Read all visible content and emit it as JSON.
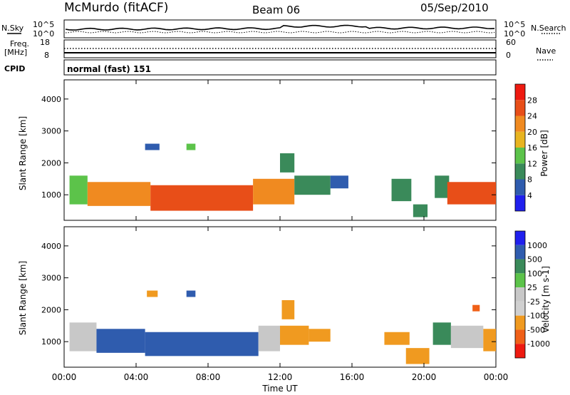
{
  "header": {
    "station": "McMurdo (fitACF)",
    "beam": "Beam 06",
    "date": "05/Sep/2010"
  },
  "noise_panel": {
    "left_label": "N.Sky",
    "right_label": "N.Search",
    "tick_top_left": "10^5",
    "tick_bottom_left": "10^0",
    "tick_top_right": "10^5",
    "tick_bottom_right": "10^0"
  },
  "freq_panel": {
    "left_label_1": "Freq.",
    "left_label_2": "[MHz]",
    "right_label": "Nave",
    "tick_left_top": "18",
    "tick_left_bottom": "8",
    "tick_right_top": "60",
    "tick_right_bottom": "0"
  },
  "cpid": {
    "label": "CPID",
    "value": "normal (fast) 151"
  },
  "colors": {
    "power": [
      "#2020ee",
      "#2f5cae",
      "#3a8a5a",
      "#5cc34a",
      "#e8b420",
      "#f08a20",
      "#e84e18",
      "#ee1a10"
    ],
    "velocity": [
      "#ee1a10",
      "#f06018",
      "#f09a20",
      "#d0d0d0",
      "#c8c8c8",
      "#5cc34a",
      "#3a8a5a",
      "#2f5cae",
      "#2020ee"
    ]
  },
  "chart_data": [
    {
      "type": "heatmap",
      "panel": "power",
      "xlabel": "",
      "ylabel": "Slant Range [km]",
      "x_ticks": [
        "00:00",
        "04:00",
        "08:00",
        "12:00",
        "16:00",
        "20:00",
        "00:00"
      ],
      "y_ticks": [
        "1000",
        "2000",
        "3000",
        "4000"
      ],
      "ylim": [
        200,
        4600
      ],
      "colorbar": {
        "label": "Power [dB]",
        "ticks": [
          "4",
          "8",
          "12",
          "16",
          "20",
          "24",
          "28"
        ],
        "range": [
          0,
          32
        ]
      },
      "regions": [
        {
          "x": [
            0.3,
            1.3
          ],
          "y": [
            700,
            1600
          ],
          "value": 12
        },
        {
          "x": [
            1.3,
            4.8
          ],
          "y": [
            650,
            1400
          ],
          "value": 20
        },
        {
          "x": [
            4.8,
            10.5
          ],
          "y": [
            500,
            1300
          ],
          "value": 27
        },
        {
          "x": [
            10.5,
            12.8
          ],
          "y": [
            700,
            1500
          ],
          "value": 20
        },
        {
          "x": [
            12.8,
            14.8
          ],
          "y": [
            1000,
            1600
          ],
          "value": 10
        },
        {
          "x": [
            14.8,
            15.8
          ],
          "y": [
            1200,
            1600
          ],
          "value": 7
        },
        {
          "x": [
            18.2,
            19.3
          ],
          "y": [
            800,
            1500
          ],
          "value": 9
        },
        {
          "x": [
            19.4,
            20.2
          ],
          "y": [
            300,
            700
          ],
          "value": 11
        },
        {
          "x": [
            20.6,
            21.4
          ],
          "y": [
            900,
            1600
          ],
          "value": 9
        },
        {
          "x": [
            21.3,
            24.0
          ],
          "y": [
            700,
            1400
          ],
          "value": 26
        },
        {
          "x": [
            4.5,
            5.3
          ],
          "y": [
            2400,
            2600
          ],
          "value": 6
        },
        {
          "x": [
            6.8,
            7.3
          ],
          "y": [
            2400,
            2600
          ],
          "value": 13
        },
        {
          "x": [
            12.0,
            12.8
          ],
          "y": [
            1700,
            2300
          ],
          "value": 9
        }
      ]
    },
    {
      "type": "heatmap",
      "panel": "velocity",
      "xlabel": "Time UT",
      "ylabel": "Slant Range [km]",
      "x_ticks": [
        "00:00",
        "04:00",
        "08:00",
        "12:00",
        "16:00",
        "20:00",
        "00:00"
      ],
      "y_ticks": [
        "1000",
        "2000",
        "3000",
        "4000"
      ],
      "ylim": [
        200,
        4600
      ],
      "colorbar": {
        "label": "Velocity [m s-1]",
        "ticks": [
          "1000",
          "500",
          "100",
          "25",
          "-25",
          "-100",
          "-500",
          "-1000"
        ]
      },
      "regions": [
        {
          "x": [
            0.3,
            1.8
          ],
          "y": [
            700,
            1600
          ],
          "value": 0
        },
        {
          "x": [
            1.8,
            4.5
          ],
          "y": [
            650,
            1400
          ],
          "value": 300
        },
        {
          "x": [
            4.5,
            10.8
          ],
          "y": [
            550,
            1300
          ],
          "value": 300
        },
        {
          "x": [
            10.8,
            12.0
          ],
          "y": [
            700,
            1500
          ],
          "value": 0
        },
        {
          "x": [
            12.0,
            13.6
          ],
          "y": [
            900,
            1500
          ],
          "value": -150
        },
        {
          "x": [
            13.6,
            14.8
          ],
          "y": [
            1000,
            1400
          ],
          "value": -150
        },
        {
          "x": [
            17.8,
            19.2
          ],
          "y": [
            900,
            1300
          ],
          "value": -150
        },
        {
          "x": [
            19.0,
            20.3
          ],
          "y": [
            300,
            800
          ],
          "value": -150
        },
        {
          "x": [
            20.5,
            21.5
          ],
          "y": [
            900,
            1600
          ],
          "value": 50
        },
        {
          "x": [
            21.5,
            23.3
          ],
          "y": [
            800,
            1500
          ],
          "value": 0
        },
        {
          "x": [
            23.3,
            24.0
          ],
          "y": [
            700,
            1400
          ],
          "value": -150
        },
        {
          "x": [
            4.6,
            5.2
          ],
          "y": [
            2400,
            2600
          ],
          "value": -100
        },
        {
          "x": [
            6.8,
            7.3
          ],
          "y": [
            2400,
            2600
          ],
          "value": 300
        },
        {
          "x": [
            22.7,
            23.1
          ],
          "y": [
            1950,
            2150
          ],
          "value": -500
        },
        {
          "x": [
            12.1,
            12.8
          ],
          "y": [
            1700,
            2300
          ],
          "value": -100
        }
      ]
    }
  ]
}
